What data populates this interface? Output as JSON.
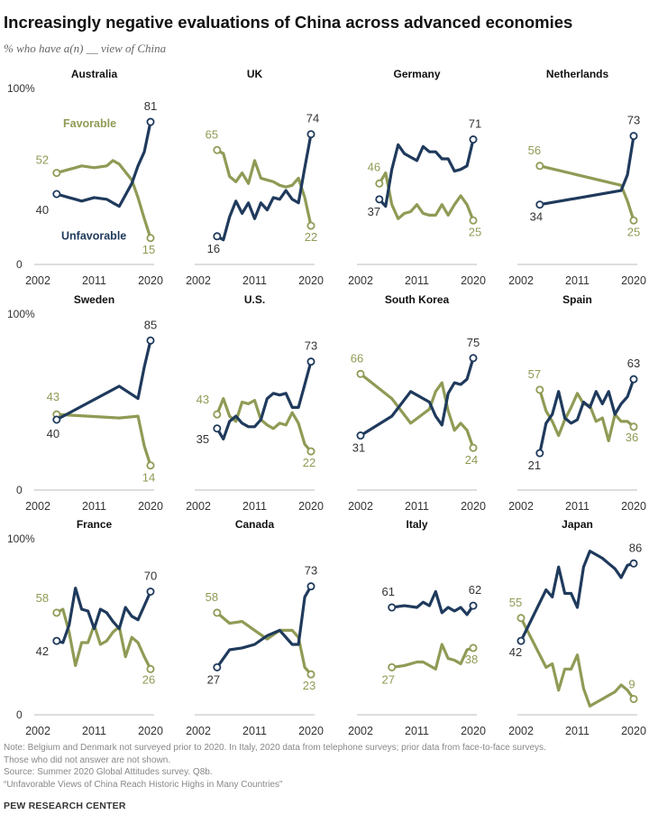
{
  "title": "Increasingly negative evaluations of China across advanced economies",
  "subtitle": "% who have a(n) __ view of China",
  "colors": {
    "favorable": "#8f9b55",
    "unfavorable": "#1f3a5c"
  },
  "footer": {
    "note_line1": "Note: Belgium and Denmark not surveyed prior to 2020. In Italy, 2020 data from telephone surveys; prior data from face-to-face surveys.",
    "note_line2": "Those who did not answer are not shown.",
    "source": "Source: Summer 2020 Global Attitudes survey. Q8b.",
    "report": "“Unfavorable Views of China Reach Historic Highs in Many Countries”",
    "org": "PEW RESEARCH CENTER"
  },
  "chart_data": {
    "type": "line",
    "x_ticks": [
      "2002",
      "2011",
      "2020"
    ],
    "xlim": [
      2002,
      2020
    ],
    "ylim": [
      0,
      100
    ],
    "y_ticks": [
      "100%",
      "0"
    ],
    "legend": {
      "favorable": "Favorable",
      "unfavorable": "Unfavorable"
    },
    "panels": [
      {
        "country": "Australia",
        "favorable": [
          [
            2005,
            52
          ],
          [
            2007,
            54
          ],
          [
            2008,
            55
          ],
          [
            2009,
            56
          ],
          [
            2011,
            55
          ],
          [
            2013,
            56
          ],
          [
            2014,
            59
          ],
          [
            2015,
            57
          ],
          [
            2017,
            48
          ],
          [
            2018,
            38
          ],
          [
            2019,
            26
          ],
          [
            2020,
            15
          ]
        ],
        "unfavorable": [
          [
            2005,
            40
          ],
          [
            2007,
            38
          ],
          [
            2008,
            37
          ],
          [
            2009,
            36
          ],
          [
            2011,
            38
          ],
          [
            2013,
            37
          ],
          [
            2014,
            35
          ],
          [
            2015,
            33
          ],
          [
            2017,
            46
          ],
          [
            2018,
            56
          ],
          [
            2019,
            64
          ],
          [
            2020,
            81
          ]
        ]
      },
      {
        "country": "UK",
        "favorable": [
          [
            2005,
            65
          ],
          [
            2006,
            63
          ],
          [
            2007,
            50
          ],
          [
            2008,
            47
          ],
          [
            2009,
            52
          ],
          [
            2010,
            46
          ],
          [
            2011,
            59
          ],
          [
            2012,
            49
          ],
          [
            2013,
            48
          ],
          [
            2014,
            47
          ],
          [
            2015,
            45
          ],
          [
            2016,
            44
          ],
          [
            2017,
            45
          ],
          [
            2018,
            49
          ],
          [
            2019,
            38
          ],
          [
            2020,
            22
          ]
        ],
        "unfavorable": [
          [
            2005,
            16
          ],
          [
            2006,
            14
          ],
          [
            2007,
            27
          ],
          [
            2008,
            36
          ],
          [
            2009,
            29
          ],
          [
            2010,
            35
          ],
          [
            2011,
            26
          ],
          [
            2012,
            35
          ],
          [
            2013,
            31
          ],
          [
            2014,
            38
          ],
          [
            2015,
            37
          ],
          [
            2016,
            42
          ],
          [
            2017,
            37
          ],
          [
            2018,
            35
          ],
          [
            2019,
            55
          ],
          [
            2020,
            74
          ]
        ]
      },
      {
        "country": "Germany",
        "favorable": [
          [
            2005,
            46
          ],
          [
            2006,
            52
          ],
          [
            2007,
            34
          ],
          [
            2008,
            26
          ],
          [
            2009,
            29
          ],
          [
            2010,
            30
          ],
          [
            2011,
            34
          ],
          [
            2012,
            29
          ],
          [
            2013,
            28
          ],
          [
            2014,
            28
          ],
          [
            2015,
            34
          ],
          [
            2016,
            28
          ],
          [
            2017,
            34
          ],
          [
            2018,
            39
          ],
          [
            2019,
            34
          ],
          [
            2020,
            25
          ]
        ],
        "unfavorable": [
          [
            2005,
            37
          ],
          [
            2006,
            33
          ],
          [
            2007,
            54
          ],
          [
            2008,
            68
          ],
          [
            2009,
            63
          ],
          [
            2010,
            61
          ],
          [
            2011,
            59
          ],
          [
            2012,
            67
          ],
          [
            2013,
            64
          ],
          [
            2014,
            64
          ],
          [
            2015,
            60
          ],
          [
            2016,
            60
          ],
          [
            2017,
            53
          ],
          [
            2018,
            54
          ],
          [
            2019,
            56
          ],
          [
            2020,
            71
          ]
        ]
      },
      {
        "country": "Netherlands",
        "favorable": [
          [
            2005,
            56
          ],
          [
            2018,
            45
          ],
          [
            2019,
            36
          ],
          [
            2020,
            25
          ]
        ],
        "unfavorable": [
          [
            2005,
            34
          ],
          [
            2018,
            42
          ],
          [
            2019,
            51
          ],
          [
            2020,
            73
          ]
        ]
      },
      {
        "country": "Sweden",
        "favorable": [
          [
            2005,
            43
          ],
          [
            2015,
            41
          ],
          [
            2018,
            42
          ],
          [
            2019,
            25
          ],
          [
            2020,
            14
          ]
        ],
        "unfavorable": [
          [
            2005,
            40
          ],
          [
            2015,
            59
          ],
          [
            2018,
            52
          ],
          [
            2019,
            70
          ],
          [
            2020,
            85
          ]
        ]
      },
      {
        "country": "U.S.",
        "favorable": [
          [
            2005,
            43
          ],
          [
            2006,
            52
          ],
          [
            2007,
            42
          ],
          [
            2008,
            39
          ],
          [
            2009,
            50
          ],
          [
            2010,
            49
          ],
          [
            2011,
            51
          ],
          [
            2012,
            40
          ],
          [
            2013,
            37
          ],
          [
            2014,
            35
          ],
          [
            2015,
            38
          ],
          [
            2016,
            37
          ],
          [
            2017,
            44
          ],
          [
            2018,
            38
          ],
          [
            2019,
            26
          ],
          [
            2020,
            22
          ]
        ],
        "unfavorable": [
          [
            2005,
            35
          ],
          [
            2006,
            29
          ],
          [
            2007,
            39
          ],
          [
            2008,
            42
          ],
          [
            2009,
            38
          ],
          [
            2010,
            36
          ],
          [
            2011,
            36
          ],
          [
            2012,
            40
          ],
          [
            2013,
            52
          ],
          [
            2014,
            55
          ],
          [
            2015,
            54
          ],
          [
            2016,
            55
          ],
          [
            2017,
            47
          ],
          [
            2018,
            47
          ],
          [
            2019,
            60
          ],
          [
            2020,
            73
          ]
        ]
      },
      {
        "country": "South Korea",
        "favorable": [
          [
            2002,
            66
          ],
          [
            2007,
            52
          ],
          [
            2010,
            38
          ],
          [
            2013,
            46
          ],
          [
            2014,
            56
          ],
          [
            2015,
            61
          ],
          [
            2016,
            45
          ],
          [
            2017,
            34
          ],
          [
            2018,
            38
          ],
          [
            2019,
            34
          ],
          [
            2020,
            24
          ]
        ],
        "unfavorable": [
          [
            2002,
            31
          ],
          [
            2007,
            42
          ],
          [
            2010,
            56
          ],
          [
            2013,
            50
          ],
          [
            2014,
            42
          ],
          [
            2015,
            37
          ],
          [
            2016,
            55
          ],
          [
            2017,
            61
          ],
          [
            2018,
            60
          ],
          [
            2019,
            63
          ],
          [
            2020,
            75
          ]
        ]
      },
      {
        "country": "Spain",
        "favorable": [
          [
            2005,
            57
          ],
          [
            2006,
            45
          ],
          [
            2007,
            39
          ],
          [
            2008,
            31
          ],
          [
            2009,
            40
          ],
          [
            2010,
            47
          ],
          [
            2011,
            55
          ],
          [
            2012,
            49
          ],
          [
            2013,
            48
          ],
          [
            2014,
            39
          ],
          [
            2015,
            41
          ],
          [
            2016,
            28
          ],
          [
            2017,
            43
          ],
          [
            2018,
            39
          ],
          [
            2019,
            39
          ],
          [
            2020,
            36
          ]
        ],
        "unfavorable": [
          [
            2005,
            21
          ],
          [
            2006,
            38
          ],
          [
            2007,
            43
          ],
          [
            2008,
            56
          ],
          [
            2009,
            41
          ],
          [
            2010,
            38
          ],
          [
            2011,
            40
          ],
          [
            2012,
            50
          ],
          [
            2013,
            47
          ],
          [
            2014,
            56
          ],
          [
            2015,
            49
          ],
          [
            2016,
            56
          ],
          [
            2017,
            43
          ],
          [
            2018,
            49
          ],
          [
            2019,
            53
          ],
          [
            2020,
            63
          ]
        ]
      },
      {
        "country": "France",
        "favorable": [
          [
            2005,
            58
          ],
          [
            2006,
            60
          ],
          [
            2007,
            47
          ],
          [
            2008,
            28
          ],
          [
            2009,
            41
          ],
          [
            2010,
            41
          ],
          [
            2011,
            51
          ],
          [
            2012,
            40
          ],
          [
            2013,
            42
          ],
          [
            2014,
            47
          ],
          [
            2015,
            50
          ],
          [
            2016,
            33
          ],
          [
            2017,
            44
          ],
          [
            2018,
            41
          ],
          [
            2019,
            33
          ],
          [
            2020,
            26
          ]
        ],
        "unfavorable": [
          [
            2005,
            42
          ],
          [
            2006,
            41
          ],
          [
            2007,
            51
          ],
          [
            2008,
            72
          ],
          [
            2009,
            60
          ],
          [
            2010,
            59
          ],
          [
            2011,
            49
          ],
          [
            2012,
            60
          ],
          [
            2013,
            58
          ],
          [
            2014,
            53
          ],
          [
            2015,
            49
          ],
          [
            2016,
            61
          ],
          [
            2017,
            56
          ],
          [
            2018,
            54
          ],
          [
            2019,
            62
          ],
          [
            2020,
            70
          ]
        ]
      },
      {
        "country": "Canada",
        "favorable": [
          [
            2005,
            58
          ],
          [
            2007,
            52
          ],
          [
            2009,
            53
          ],
          [
            2011,
            48
          ],
          [
            2013,
            43
          ],
          [
            2015,
            48
          ],
          [
            2017,
            48
          ],
          [
            2018,
            44
          ],
          [
            2019,
            27
          ],
          [
            2020,
            23
          ]
        ],
        "unfavorable": [
          [
            2005,
            27
          ],
          [
            2007,
            37
          ],
          [
            2009,
            38
          ],
          [
            2011,
            40
          ],
          [
            2013,
            45
          ],
          [
            2015,
            48
          ],
          [
            2017,
            40
          ],
          [
            2018,
            40
          ],
          [
            2019,
            67
          ],
          [
            2020,
            73
          ]
        ]
      },
      {
        "country": "Italy",
        "favorable": [
          [
            2007,
            27
          ],
          [
            2009,
            28
          ],
          [
            2011,
            30
          ],
          [
            2012,
            30
          ],
          [
            2013,
            28
          ],
          [
            2014,
            26
          ],
          [
            2015,
            40
          ],
          [
            2016,
            32
          ],
          [
            2017,
            31
          ],
          [
            2018,
            29
          ],
          [
            2019,
            37
          ],
          [
            2020,
            38
          ]
        ],
        "unfavorable": [
          [
            2007,
            61
          ],
          [
            2009,
            62
          ],
          [
            2011,
            61
          ],
          [
            2012,
            64
          ],
          [
            2013,
            62
          ],
          [
            2014,
            70
          ],
          [
            2015,
            58
          ],
          [
            2016,
            61
          ],
          [
            2017,
            59
          ],
          [
            2018,
            61
          ],
          [
            2019,
            57
          ],
          [
            2020,
            62
          ]
        ]
      },
      {
        "country": "Japan",
        "favorable": [
          [
            2002,
            55
          ],
          [
            2006,
            27
          ],
          [
            2007,
            29
          ],
          [
            2008,
            14
          ],
          [
            2009,
            26
          ],
          [
            2010,
            26
          ],
          [
            2011,
            34
          ],
          [
            2012,
            15
          ],
          [
            2013,
            5
          ],
          [
            2014,
            7
          ],
          [
            2015,
            9
          ],
          [
            2016,
            11
          ],
          [
            2017,
            13
          ],
          [
            2018,
            17
          ],
          [
            2019,
            14
          ],
          [
            2020,
            9
          ]
        ],
        "unfavorable": [
          [
            2002,
            42
          ],
          [
            2006,
            71
          ],
          [
            2007,
            67
          ],
          [
            2008,
            84
          ],
          [
            2009,
            69
          ],
          [
            2010,
            69
          ],
          [
            2011,
            61
          ],
          [
            2012,
            84
          ],
          [
            2013,
            93
          ],
          [
            2014,
            91
          ],
          [
            2015,
            89
          ],
          [
            2016,
            86
          ],
          [
            2017,
            83
          ],
          [
            2018,
            78
          ],
          [
            2019,
            85
          ],
          [
            2020,
            86
          ]
        ]
      }
    ]
  }
}
